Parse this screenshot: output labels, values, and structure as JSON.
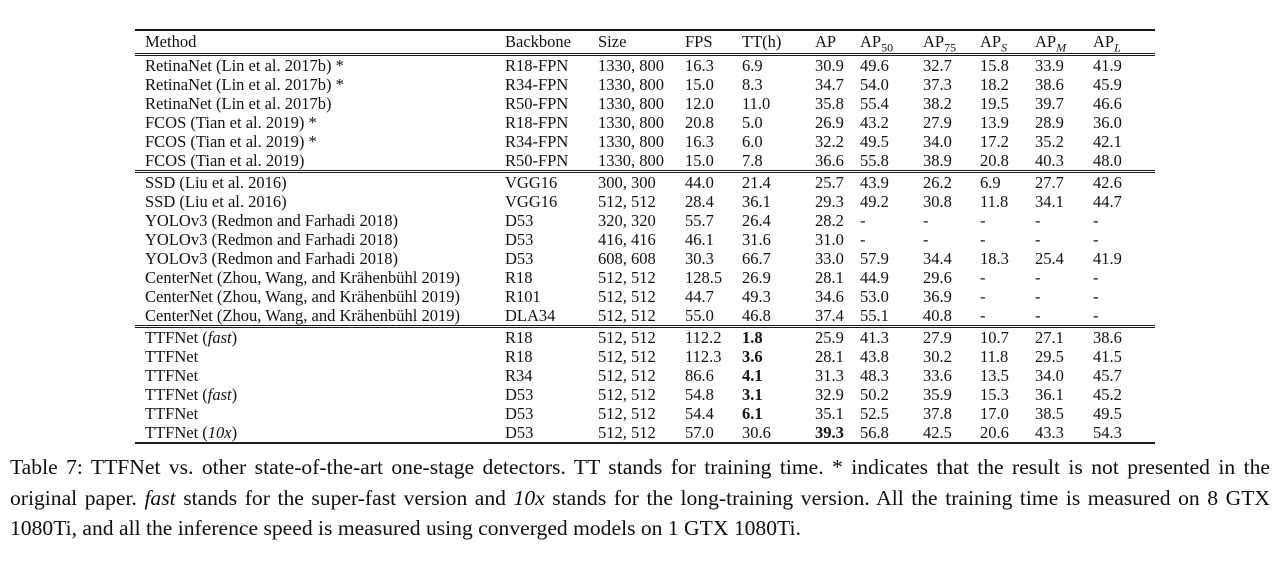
{
  "table": {
    "columns": [
      {
        "key": "method",
        "base": "Method",
        "sub": ""
      },
      {
        "key": "backbone",
        "base": "Backbone",
        "sub": ""
      },
      {
        "key": "size",
        "base": "Size",
        "sub": ""
      },
      {
        "key": "fps",
        "base": "FPS",
        "sub": ""
      },
      {
        "key": "tt-h",
        "base": "TT(h)",
        "sub": ""
      },
      {
        "key": "ap",
        "base": "AP",
        "sub": ""
      },
      {
        "key": "ap-50",
        "base": "AP",
        "sub": "50",
        "italic_sub": false
      },
      {
        "key": "ap-75",
        "base": "AP",
        "sub": "75",
        "italic_sub": false
      },
      {
        "key": "ap-s",
        "base": "AP",
        "sub": "S",
        "italic_sub": true
      },
      {
        "key": "ap-m",
        "base": "AP",
        "sub": "M",
        "italic_sub": true
      },
      {
        "key": "ap-l",
        "base": "AP",
        "sub": "L",
        "italic_sub": true
      }
    ],
    "groups": [
      {
        "rows": [
          [
            "RetinaNet (Lin et al. 2017b) *",
            "R18-FPN",
            "1330, 800",
            "16.3",
            "6.9",
            "30.9",
            "49.6",
            "32.7",
            "15.8",
            "33.9",
            "41.9"
          ],
          [
            "RetinaNet (Lin et al. 2017b) *",
            "R34-FPN",
            "1330, 800",
            "15.0",
            "8.3",
            "34.7",
            "54.0",
            "37.3",
            "18.2",
            "38.6",
            "45.9"
          ],
          [
            "RetinaNet (Lin et al. 2017b)",
            "R50-FPN",
            "1330, 800",
            "12.0",
            "11.0",
            "35.8",
            "55.4",
            "38.2",
            "19.5",
            "39.7",
            "46.6"
          ],
          [
            "FCOS (Tian et al. 2019) *",
            "R18-FPN",
            "1330, 800",
            "20.8",
            "5.0",
            "26.9",
            "43.2",
            "27.9",
            "13.9",
            "28.9",
            "36.0"
          ],
          [
            "FCOS (Tian et al. 2019) *",
            "R34-FPN",
            "1330, 800",
            "16.3",
            "6.0",
            "32.2",
            "49.5",
            "34.0",
            "17.2",
            "35.2",
            "42.1"
          ],
          [
            "FCOS (Tian et al. 2019)",
            "R50-FPN",
            "1330, 800",
            "15.0",
            "7.8",
            "36.6",
            "55.8",
            "38.9",
            "20.8",
            "40.3",
            "48.0"
          ]
        ]
      },
      {
        "rows": [
          [
            "SSD (Liu et al. 2016)",
            "VGG16",
            "300, 300",
            "44.0",
            "21.4",
            "25.7",
            "43.9",
            "26.2",
            "6.9",
            "27.7",
            "42.6"
          ],
          [
            "SSD (Liu et al. 2016)",
            "VGG16",
            "512, 512",
            "28.4",
            "36.1",
            "29.3",
            "49.2",
            "30.8",
            "11.8",
            "34.1",
            "44.7"
          ],
          [
            "YOLOv3 (Redmon and Farhadi 2018)",
            "D53",
            "320, 320",
            "55.7",
            "26.4",
            "28.2",
            "-",
            "-",
            "-",
            "-",
            "-"
          ],
          [
            "YOLOv3 (Redmon and Farhadi 2018)",
            "D53",
            "416, 416",
            "46.1",
            "31.6",
            "31.0",
            "-",
            "-",
            "-",
            "-",
            "-"
          ],
          [
            "YOLOv3 (Redmon and Farhadi 2018)",
            "D53",
            "608, 608",
            "30.3",
            "66.7",
            "33.0",
            "57.9",
            "34.4",
            "18.3",
            "25.4",
            "41.9"
          ],
          [
            "CenterNet (Zhou, Wang, and Krähenbühl 2019)",
            "R18",
            "512, 512",
            "128.5",
            "26.9",
            "28.1",
            "44.9",
            "29.6",
            "-",
            "-",
            "-"
          ],
          [
            "CenterNet (Zhou, Wang, and Krähenbühl 2019)",
            "R101",
            "512, 512",
            "44.7",
            "49.3",
            "34.6",
            "53.0",
            "36.9",
            "-",
            "-",
            "-"
          ],
          [
            "CenterNet (Zhou, Wang, and Krähenbühl 2019)",
            "DLA34",
            "512, 512",
            "55.0",
            "46.8",
            "37.4",
            "55.1",
            "40.8",
            "-",
            "-",
            "-"
          ]
        ]
      },
      {
        "rows": [
          [
            "TTFNet ({i}fast{/i})",
            "R18",
            "512, 512",
            "112.2",
            "{b}1.8{/b}",
            "25.9",
            "41.3",
            "27.9",
            "10.7",
            "27.1",
            "38.6"
          ],
          [
            "TTFNet",
            "R18",
            "512, 512",
            "112.3",
            "{b}3.6{/b}",
            "28.1",
            "43.8",
            "30.2",
            "11.8",
            "29.5",
            "41.5"
          ],
          [
            "TTFNet",
            "R34",
            "512, 512",
            "86.6",
            "{b}4.1{/b}",
            "31.3",
            "48.3",
            "33.6",
            "13.5",
            "34.0",
            "45.7"
          ],
          [
            "TTFNet ({i}fast{/i})",
            "D53",
            "512, 512",
            "54.8",
            "{b}3.1{/b}",
            "32.9",
            "50.2",
            "35.9",
            "15.3",
            "36.1",
            "45.2"
          ],
          [
            "TTFNet",
            "D53",
            "512, 512",
            "54.4",
            "{b}6.1{/b}",
            "35.1",
            "52.5",
            "37.8",
            "17.0",
            "38.5",
            "49.5"
          ],
          [
            "TTFNet ({i}10x{/i})",
            "D53",
            "512, 512",
            "57.0",
            "30.6",
            "{b}39.3{/b}",
            "56.8",
            "42.5",
            "20.6",
            "43.3",
            "54.3"
          ]
        ]
      }
    ]
  },
  "caption": {
    "text": "Table 7: TTFNet vs. other state-of-the-art one-stage detectors. TT stands for training time. * indicates that the result is not presented in the original paper. {i}fast{/i} stands for the super-fast version and {i}10x{/i} stands for the long-training version. All the training time is measured on 8 GTX 1080Ti, and all the inference speed is measured using converged models on 1 GTX 1080Ti."
  }
}
